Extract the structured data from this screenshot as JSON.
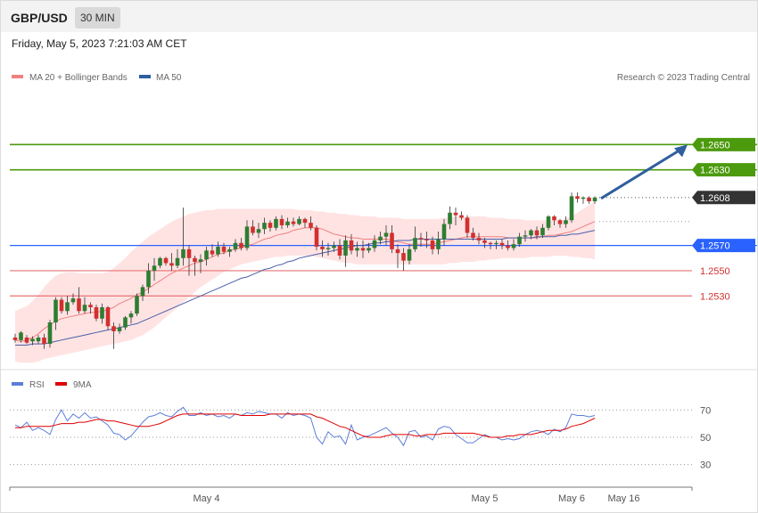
{
  "header": {
    "symbol": "GBP/USD",
    "timeframe": "30 MIN"
  },
  "datetime": "Friday, May 5, 2023 7:21:03 AM CET",
  "legend": {
    "bollinger": "MA 20 + Bollinger Bands",
    "ma50": "MA 50",
    "rsi": "RSI",
    "ma9": "9MA"
  },
  "copyright": "Research © 2023 Trading Central",
  "colors": {
    "up": "#2e7d32",
    "down": "#d32f2f",
    "green_level": "#4c9a0e",
    "blue_level": "#2962ff",
    "red_level": "#e57373",
    "current": "#333333",
    "ma50": "#4a5fa8",
    "ma20": "#f08080",
    "band": "#ffe3e3",
    "arrow": "#2f5f9e"
  },
  "chart_data": {
    "type": "candlestick",
    "y_range": [
      1.2473,
      1.2694
    ],
    "x_labels": [
      {
        "label": "May 4",
        "index": 33
      },
      {
        "label": "May 5",
        "index": 81
      },
      {
        "label": "May 6",
        "index": 96
      },
      {
        "label": "May 16",
        "index": 105
      }
    ],
    "levels": [
      {
        "value": 1.265,
        "label": "1.2650",
        "kind": "resistance"
      },
      {
        "value": 1.263,
        "label": "1.2630",
        "kind": "resistance"
      },
      {
        "value": 1.2608,
        "label": "1.2608",
        "kind": "current"
      },
      {
        "value": 1.257,
        "label": "1.2570",
        "kind": "pivot"
      },
      {
        "value": 1.255,
        "label": "1.2550",
        "kind": "support"
      },
      {
        "value": 1.253,
        "label": "1.2530",
        "kind": "support"
      }
    ],
    "candles": [
      [
        1.2497,
        1.2495,
        1.25,
        1.2493
      ],
      [
        1.2495,
        1.2501,
        1.2502,
        1.2493
      ],
      [
        1.2497,
        1.2493,
        1.2499,
        1.2492
      ],
      [
        1.2494,
        1.2496,
        1.2498,
        1.2491
      ],
      [
        1.2494,
        1.2497,
        1.2499,
        1.2492
      ],
      [
        1.2497,
        1.2492,
        1.25,
        1.2488
      ],
      [
        1.2492,
        1.2509,
        1.2511,
        1.2489
      ],
      [
        1.2509,
        1.2527,
        1.2529,
        1.2503
      ],
      [
        1.2527,
        1.2518,
        1.2529,
        1.2516
      ],
      [
        1.2518,
        1.2525,
        1.253,
        1.2515
      ],
      [
        1.2525,
        1.2528,
        1.2532,
        1.2523
      ],
      [
        1.2528,
        1.2518,
        1.2537,
        1.2516
      ],
      [
        1.2518,
        1.2523,
        1.2529,
        1.2516
      ],
      [
        1.2523,
        1.2521,
        1.2525,
        1.2516
      ],
      [
        1.2521,
        1.2512,
        1.2523,
        1.251
      ],
      [
        1.2512,
        1.2521,
        1.2524,
        1.2508
      ],
      [
        1.2521,
        1.2506,
        1.2522,
        1.2503
      ],
      [
        1.2506,
        1.2502,
        1.2509,
        1.2488
      ],
      [
        1.2502,
        1.2505,
        1.2508,
        1.25
      ],
      [
        1.2505,
        1.2513,
        1.2514,
        1.2503
      ],
      [
        1.2513,
        1.2516,
        1.2518,
        1.2508
      ],
      [
        1.2516,
        1.253,
        1.2532,
        1.2514
      ],
      [
        1.253,
        1.2537,
        1.2539,
        1.2526
      ],
      [
        1.2537,
        1.255,
        1.2556,
        1.2532
      ],
      [
        1.255,
        1.2554,
        1.256,
        1.2542
      ],
      [
        1.2554,
        1.256,
        1.2561,
        1.2552
      ],
      [
        1.256,
        1.2556,
        1.2561,
        1.2554
      ],
      [
        1.2556,
        1.2554,
        1.2564,
        1.255
      ],
      [
        1.2554,
        1.256,
        1.2567,
        1.2552
      ],
      [
        1.256,
        1.2567,
        1.26,
        1.2554
      ],
      [
        1.2567,
        1.256,
        1.257,
        1.2546
      ],
      [
        1.256,
        1.2557,
        1.2562,
        1.2546
      ],
      [
        1.2557,
        1.2559,
        1.2563,
        1.2548
      ],
      [
        1.2559,
        1.2566,
        1.2569,
        1.2554
      ],
      [
        1.2566,
        1.2563,
        1.2571,
        1.2561
      ],
      [
        1.2563,
        1.2569,
        1.2573,
        1.2561
      ],
      [
        1.2569,
        1.2565,
        1.2572,
        1.2563
      ],
      [
        1.2565,
        1.2567,
        1.2569,
        1.2561
      ],
      [
        1.2567,
        1.2572,
        1.2575,
        1.2565
      ],
      [
        1.2572,
        1.2568,
        1.2576,
        1.2566
      ],
      [
        1.2568,
        1.2585,
        1.259,
        1.2566
      ],
      [
        1.2585,
        1.258,
        1.259,
        1.2578
      ],
      [
        1.258,
        1.2583,
        1.2588,
        1.2576
      ],
      [
        1.2583,
        1.2588,
        1.2592,
        1.2579
      ],
      [
        1.2588,
        1.2584,
        1.259,
        1.2581
      ],
      [
        1.2584,
        1.2591,
        1.2593,
        1.2582
      ],
      [
        1.2591,
        1.2586,
        1.2594,
        1.2583
      ],
      [
        1.2586,
        1.2589,
        1.2592,
        1.2584
      ],
      [
        1.2589,
        1.2587,
        1.2592,
        1.2585
      ],
      [
        1.2587,
        1.2591,
        1.2593,
        1.2586
      ],
      [
        1.2591,
        1.2588,
        1.2592,
        1.2584
      ],
      [
        1.2588,
        1.2584,
        1.2593,
        1.2582
      ],
      [
        1.2584,
        1.2569,
        1.2586,
        1.2566
      ],
      [
        1.2569,
        1.2567,
        1.2574,
        1.2561
      ],
      [
        1.2567,
        1.2568,
        1.2572,
        1.2562
      ],
      [
        1.2568,
        1.257,
        1.2573,
        1.2565
      ],
      [
        1.257,
        1.2562,
        1.2575,
        1.2559
      ],
      [
        1.2562,
        1.2574,
        1.2578,
        1.2553
      ],
      [
        1.2574,
        1.2566,
        1.2579,
        1.2563
      ],
      [
        1.2566,
        1.2568,
        1.2573,
        1.2561
      ],
      [
        1.2568,
        1.2566,
        1.2574,
        1.256
      ],
      [
        1.2566,
        1.2568,
        1.2572,
        1.2564
      ],
      [
        1.2568,
        1.2574,
        1.2578,
        1.2565
      ],
      [
        1.2574,
        1.2577,
        1.2581,
        1.2571
      ],
      [
        1.2577,
        1.258,
        1.2586,
        1.257
      ],
      [
        1.258,
        1.2567,
        1.2586,
        1.2564
      ],
      [
        1.2567,
        1.2564,
        1.2571,
        1.2552
      ],
      [
        1.2564,
        1.2558,
        1.2568,
        1.255
      ],
      [
        1.2558,
        1.2567,
        1.2571,
        1.2555
      ],
      [
        1.2567,
        1.2576,
        1.2585,
        1.2565
      ],
      [
        1.2576,
        1.2575,
        1.258,
        1.2569
      ],
      [
        1.2575,
        1.2574,
        1.2581,
        1.2568
      ],
      [
        1.2574,
        1.2567,
        1.2577,
        1.2563
      ],
      [
        1.2567,
        1.2575,
        1.2581,
        1.2563
      ],
      [
        1.2575,
        1.2587,
        1.2591,
        1.257
      ],
      [
        1.2587,
        1.2596,
        1.2601,
        1.2583
      ],
      [
        1.2596,
        1.2594,
        1.26,
        1.2586
      ],
      [
        1.2594,
        1.2592,
        1.2597,
        1.259
      ],
      [
        1.2592,
        1.258,
        1.2594,
        1.2576
      ],
      [
        1.258,
        1.2576,
        1.2584,
        1.2574
      ],
      [
        1.2576,
        1.2574,
        1.258,
        1.2571
      ],
      [
        1.2574,
        1.2572,
        1.2576,
        1.2568
      ],
      [
        1.2572,
        1.2571,
        1.2573,
        1.2567
      ],
      [
        1.2571,
        1.2572,
        1.2574,
        1.2567
      ],
      [
        1.2572,
        1.257,
        1.2575,
        1.2567
      ],
      [
        1.257,
        1.2568,
        1.2574,
        1.2566
      ],
      [
        1.2568,
        1.2571,
        1.2575,
        1.2566
      ],
      [
        1.2571,
        1.2577,
        1.258,
        1.2569
      ],
      [
        1.2577,
        1.2578,
        1.2582,
        1.2573
      ],
      [
        1.2578,
        1.2582,
        1.2583,
        1.2575
      ],
      [
        1.2582,
        1.2578,
        1.2585,
        1.2575
      ],
      [
        1.2578,
        1.2584,
        1.2587,
        1.2576
      ],
      [
        1.2584,
        1.2593,
        1.2594,
        1.2582
      ],
      [
        1.2593,
        1.259,
        1.2594,
        1.2586
      ],
      [
        1.259,
        1.2587,
        1.2591,
        1.2584
      ],
      [
        1.2587,
        1.259,
        1.2593,
        1.2584
      ],
      [
        1.259,
        1.2609,
        1.2612,
        1.2588
      ],
      [
        1.2609,
        1.2607,
        1.2612,
        1.2604
      ],
      [
        1.2607,
        1.2608,
        1.2609,
        1.2603
      ],
      [
        1.2608,
        1.2605,
        1.2609,
        1.2603
      ],
      [
        1.2605,
        1.2608,
        1.2609,
        1.2603
      ]
    ],
    "ma20": [
      1.2495,
      1.2494,
      1.2495,
      1.2497,
      1.25,
      1.2504,
      1.2507,
      1.251,
      1.2512,
      1.2513,
      1.2514,
      1.2515,
      1.2516,
      1.2517,
      1.2517,
      1.2518,
      1.2519,
      1.2521,
      1.2524,
      1.2526,
      1.2528,
      1.2531,
      1.2533,
      1.2536,
      1.2539,
      1.2542,
      1.2545,
      1.2548,
      1.255,
      1.2552,
      1.2554,
      1.2556,
      1.2557,
      1.2559,
      1.2561,
      1.2563,
      1.2564,
      1.2566,
      1.2567,
      1.2568,
      1.257,
      1.2571,
      1.2573,
      1.2575,
      1.2576,
      1.2578,
      1.2579,
      1.258,
      1.2582,
      1.2583,
      1.2584,
      1.2584,
      1.2584,
      1.2583,
      1.2581,
      1.2579,
      1.2578,
      1.2577,
      1.2576,
      1.2576,
      1.2575,
      1.2575,
      1.2575,
      1.2575,
      1.2575,
      1.2574,
      1.2573,
      1.2572,
      1.2571,
      1.2571,
      1.2571,
      1.2571,
      1.2571,
      1.2572,
      1.2573,
      1.2574,
      1.2575,
      1.2576,
      1.2577,
      1.2577,
      1.2577,
      1.2577,
      1.2577,
      1.2577,
      1.2577,
      1.2576,
      1.2576,
      1.2576,
      1.2576,
      1.2576,
      1.2576,
      1.2577,
      1.2578,
      1.2578,
      1.2579,
      1.258,
      1.2581,
      1.2583,
      1.2585,
      1.2587,
      1.2589
    ],
    "band_upper": [
      1.2518,
      1.252,
      1.2522,
      1.2526,
      1.2531,
      1.2537,
      1.2542,
      1.2546,
      1.2548,
      1.2549,
      1.2549,
      1.2548,
      1.2548,
      1.2548,
      1.2548,
      1.2548,
      1.2549,
      1.2552,
      1.2556,
      1.256,
      1.2565,
      1.2569,
      1.2573,
      1.2577,
      1.258,
      1.2583,
      1.2586,
      1.2589,
      1.2591,
      1.2593,
      1.2595,
      1.2596,
      1.2597,
      1.2598,
      1.2598,
      1.2599,
      1.2599,
      1.2599,
      1.2599,
      1.2599,
      1.2599,
      1.2599,
      1.2599,
      1.2599,
      1.2599,
      1.2599,
      1.2599,
      1.2599,
      1.2599,
      1.2598,
      1.2598,
      1.2598,
      1.2597,
      1.2597,
      1.2596,
      1.2596,
      1.2595,
      1.2595,
      1.2594,
      1.2594,
      1.2593,
      1.2593,
      1.2593,
      1.2592,
      1.2592,
      1.2592,
      1.2592,
      1.2591,
      1.2591,
      1.2591,
      1.2591,
      1.2591,
      1.2591,
      1.2591,
      1.2592,
      1.2592,
      1.2593,
      1.2593,
      1.2593,
      1.2593,
      1.2593,
      1.2593,
      1.2592,
      1.2592,
      1.2592,
      1.2591,
      1.2591,
      1.2591,
      1.259,
      1.259,
      1.259,
      1.259,
      1.259,
      1.259,
      1.259,
      1.2591,
      1.2593,
      1.2596,
      1.2599,
      1.2602,
      1.2605
    ],
    "band_lower": [
      1.2478,
      1.2477,
      1.2477,
      1.2477,
      1.2478,
      1.248,
      1.2481,
      1.2482,
      1.2483,
      1.2484,
      1.2485,
      1.2486,
      1.2487,
      1.2488,
      1.2489,
      1.249,
      1.2491,
      1.2492,
      1.2493,
      1.2494,
      1.2495,
      1.2497,
      1.2499,
      1.2502,
      1.2505,
      1.2509,
      1.2513,
      1.2517,
      1.2521,
      1.2525,
      1.2529,
      1.2533,
      1.2537,
      1.254,
      1.2543,
      1.2546,
      1.2549,
      1.2551,
      1.2553,
      1.2555,
      1.2556,
      1.2557,
      1.2558,
      1.2559,
      1.256,
      1.2561,
      1.2561,
      1.2562,
      1.2562,
      1.2562,
      1.2562,
      1.2562,
      1.2561,
      1.256,
      1.2559,
      1.2558,
      1.2557,
      1.2556,
      1.2556,
      1.2555,
      1.2555,
      1.2555,
      1.2555,
      1.2555,
      1.2555,
      1.2555,
      1.2555,
      1.2555,
      1.2555,
      1.2555,
      1.2555,
      1.2555,
      1.2555,
      1.2555,
      1.2555,
      1.2556,
      1.2556,
      1.2557,
      1.2557,
      1.2557,
      1.2558,
      1.2558,
      1.2559,
      1.2559,
      1.256,
      1.256,
      1.256,
      1.256,
      1.256,
      1.2561,
      1.2561,
      1.2561,
      1.2561,
      1.2562,
      1.2562,
      1.2562,
      1.2561,
      1.2561,
      1.256,
      1.256,
      1.2559
    ],
    "ma50": [
      1.2491,
      1.2491,
      1.2491,
      1.2492,
      1.2492,
      1.2492,
      1.2493,
      1.2494,
      1.2495,
      1.2496,
      1.2497,
      1.2498,
      1.2499,
      1.25,
      1.2501,
      1.2502,
      1.2503,
      1.2504,
      1.2505,
      1.2506,
      1.2507,
      1.2508,
      1.251,
      1.2512,
      1.2514,
      1.2516,
      1.2518,
      1.252,
      1.2522,
      1.2524,
      1.2526,
      1.2528,
      1.253,
      1.2532,
      1.2534,
      1.2536,
      1.2538,
      1.254,
      1.2542,
      1.2544,
      1.2545,
      1.2547,
      1.2549,
      1.2551,
      1.2552,
      1.2554,
      1.2555,
      1.2557,
      1.2558,
      1.256,
      1.2561,
      1.2562,
      1.2563,
      1.2564,
      1.2565,
      1.2566,
      1.2567,
      1.2568,
      1.2569,
      1.257,
      1.257,
      1.2571,
      1.2572,
      1.2572,
      1.2573,
      1.2573,
      1.2574,
      1.2574,
      1.2574,
      1.2575,
      1.2575,
      1.2575,
      1.2575,
      1.2575,
      1.2575,
      1.2575,
      1.2575,
      1.2575,
      1.2575,
      1.2575,
      1.2575,
      1.2575,
      1.2575,
      1.2575,
      1.2575,
      1.2576,
      1.2576,
      1.2576,
      1.2576,
      1.2576,
      1.2577,
      1.2577,
      1.2577,
      1.2577,
      1.2578,
      1.2578,
      1.2579,
      1.2579,
      1.258,
      1.2581,
      1.2582
    ],
    "rsi": {
      "levels": [
        70,
        50,
        30
      ],
      "y_range": [
        18,
        80
      ],
      "rsi": [
        59,
        57,
        61,
        55,
        57,
        55,
        52,
        63,
        70,
        62,
        67,
        64,
        68,
        64,
        65,
        62,
        59,
        53,
        52,
        48,
        51,
        56,
        61,
        65,
        66,
        68,
        66,
        65,
        69,
        72,
        66,
        66,
        68,
        66,
        67,
        65,
        66,
        64,
        67,
        66,
        68,
        67,
        69,
        68,
        67,
        67,
        64,
        68,
        66,
        67,
        66,
        64,
        50,
        45,
        54,
        50,
        51,
        45,
        59,
        48,
        50,
        51,
        53,
        55,
        57,
        53,
        50,
        44,
        54,
        55,
        50,
        51,
        48,
        56,
        58,
        57,
        52,
        49,
        46,
        46,
        49,
        52,
        50,
        50,
        48,
        49,
        48,
        49,
        52,
        54,
        55,
        54,
        52,
        56,
        54,
        57,
        67,
        66,
        66,
        65,
        66
      ],
      "ma9": [
        57,
        57,
        58,
        58,
        58,
        58,
        58,
        59,
        60,
        60,
        60,
        61,
        61,
        62,
        63,
        63,
        62,
        62,
        61,
        60,
        59,
        58,
        58,
        58,
        59,
        60,
        62,
        64,
        66,
        67,
        67,
        67,
        67,
        67,
        67,
        67,
        67,
        67,
        67,
        66,
        66,
        66,
        66,
        66,
        67,
        67,
        67,
        67,
        67,
        67,
        67,
        67,
        65,
        64,
        62,
        60,
        58,
        57,
        55,
        53,
        51,
        50,
        50,
        50,
        51,
        52,
        52,
        52,
        52,
        51,
        51,
        52,
        52,
        52,
        53,
        53,
        53,
        53,
        53,
        53,
        52,
        51,
        50,
        50,
        50,
        51,
        51,
        52,
        52,
        52,
        53,
        54,
        55,
        55,
        55,
        56,
        58,
        59,
        60,
        62,
        64
      ]
    }
  }
}
